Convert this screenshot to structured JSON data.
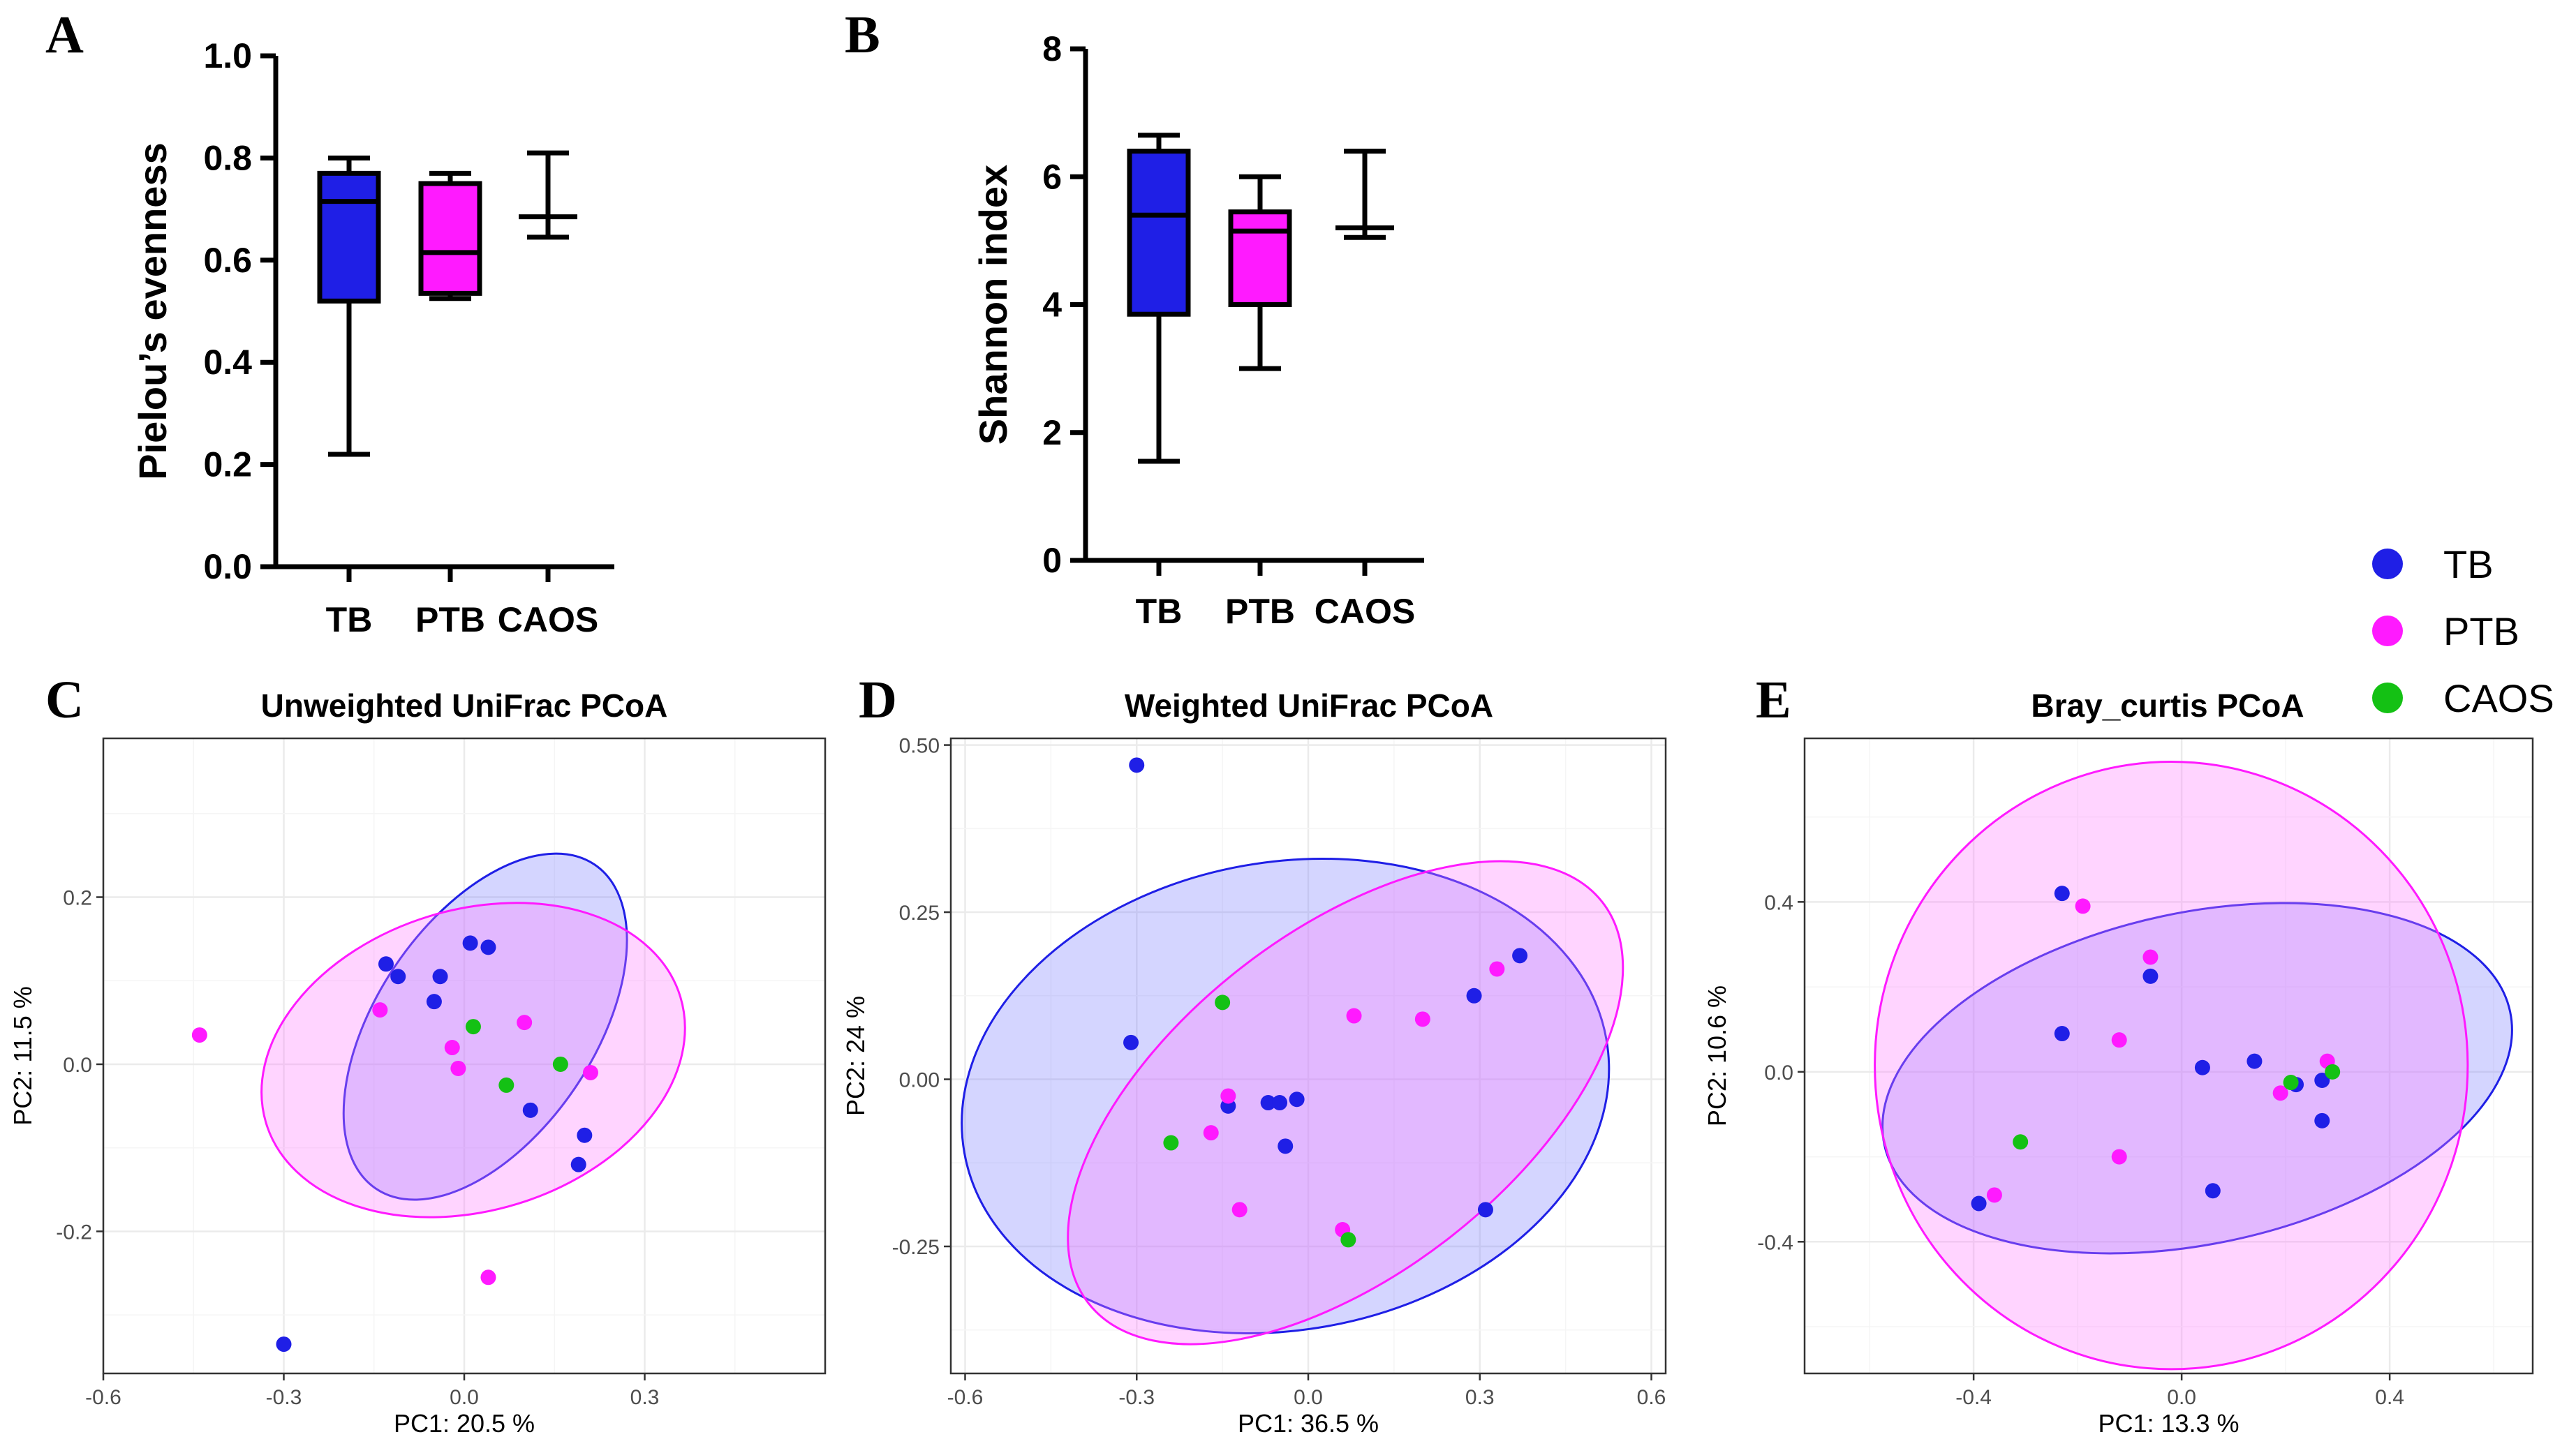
{
  "panels": {
    "A": "A",
    "B": "B",
    "C": "C",
    "D": "D",
    "E": "E"
  },
  "colors": {
    "TB": "#1f1fe6",
    "PTB": "#ff1aff",
    "CAOS": "#14c114",
    "TB_fill": "#7b80ff",
    "PTB_fill": "#ff7bff"
  },
  "legend": {
    "entries": [
      {
        "label": "TB",
        "color": "#1f1fe6"
      },
      {
        "label": "PTB",
        "color": "#ff1aff"
      },
      {
        "label": "CAOS",
        "color": "#14c114"
      }
    ]
  },
  "chart_data": [
    {
      "id": "A",
      "type": "box",
      "ylabel": "Pielou’s evenness",
      "ylim": [
        0,
        1.0
      ],
      "yticks": [
        "0.0",
        "0.2",
        "0.4",
        "0.6",
        "0.8",
        "1.0"
      ],
      "ytick_values": [
        0,
        0.2,
        0.4,
        0.6,
        0.8,
        1.0
      ],
      "categories": [
        "TB",
        "PTB",
        "CAOS"
      ],
      "boxes": [
        {
          "group": "TB",
          "min": 0.22,
          "q1": 0.52,
          "median": 0.715,
          "q3": 0.77,
          "max": 0.8,
          "fill": "#1f1fe6"
        },
        {
          "group": "PTB",
          "min": 0.525,
          "q1": 0.535,
          "median": 0.615,
          "q3": 0.75,
          "max": 0.77,
          "fill": "#ff1aff"
        },
        {
          "group": "CAOS",
          "min": 0.645,
          "q1": 0.685,
          "median": 0.685,
          "q3": 0.685,
          "max": 0.81,
          "fill": "none"
        }
      ]
    },
    {
      "id": "B",
      "type": "box",
      "ylabel": "Shannon index",
      "ylim": [
        0,
        8
      ],
      "yticks": [
        "0",
        "2",
        "4",
        "6",
        "8"
      ],
      "ytick_values": [
        0,
        2,
        4,
        6,
        8
      ],
      "categories": [
        "TB",
        "PTB",
        "CAOS"
      ],
      "boxes": [
        {
          "group": "TB",
          "min": 1.55,
          "q1": 3.85,
          "median": 5.4,
          "q3": 6.4,
          "max": 6.65,
          "fill": "#1f1fe6"
        },
        {
          "group": "PTB",
          "min": 3.0,
          "q1": 4.0,
          "median": 5.15,
          "q3": 5.45,
          "max": 6.0,
          "fill": "#ff1aff"
        },
        {
          "group": "CAOS",
          "min": 5.05,
          "q1": 5.2,
          "median": 5.2,
          "q3": 5.2,
          "max": 6.4,
          "fill": "none"
        }
      ]
    },
    {
      "id": "C",
      "type": "scatter",
      "title": "Unweighted UniFrac PCoA",
      "xlabel": "PC1: 20.5 %",
      "ylabel": "PC2: 11.5 %",
      "xlim": [
        -0.6,
        0.6
      ],
      "ylim": [
        -0.37,
        0.39
      ],
      "xticks": [
        -0.6,
        -0.3,
        0.0,
        0.3
      ],
      "xtick_labels": [
        "-0.6",
        "-0.3",
        "0.0",
        "0.3"
      ],
      "yticks": [
        -0.2,
        0.0,
        0.2
      ],
      "ytick_labels": [
        "-0.2",
        "0.0",
        "0.2"
      ],
      "ellipses": [
        {
          "group": "TB",
          "cx": 0.035,
          "cy": 0.045,
          "rx": 0.325,
          "ry": 0.13,
          "angle_deg": -56
        },
        {
          "group": "PTB",
          "cx": 0.015,
          "cy": 0.005,
          "rx": 0.36,
          "ry": 0.18,
          "angle_deg": -17
        }
      ],
      "points": [
        {
          "group": "TB",
          "x": -0.13,
          "y": 0.12
        },
        {
          "group": "TB",
          "x": -0.11,
          "y": 0.105
        },
        {
          "group": "TB",
          "x": -0.04,
          "y": 0.105
        },
        {
          "group": "TB",
          "x": -0.05,
          "y": 0.075
        },
        {
          "group": "TB",
          "x": 0.01,
          "y": 0.145
        },
        {
          "group": "TB",
          "x": 0.04,
          "y": 0.14
        },
        {
          "group": "TB",
          "x": 0.11,
          "y": -0.055
        },
        {
          "group": "TB",
          "x": 0.2,
          "y": -0.085
        },
        {
          "group": "TB",
          "x": 0.19,
          "y": -0.12
        },
        {
          "group": "TB",
          "x": -0.3,
          "y": -0.335
        },
        {
          "group": "PTB",
          "x": -0.44,
          "y": 0.035
        },
        {
          "group": "PTB",
          "x": -0.14,
          "y": 0.065
        },
        {
          "group": "PTB",
          "x": -0.02,
          "y": 0.02
        },
        {
          "group": "PTB",
          "x": -0.01,
          "y": -0.005
        },
        {
          "group": "PTB",
          "x": 0.1,
          "y": 0.05
        },
        {
          "group": "PTB",
          "x": 0.21,
          "y": -0.01
        },
        {
          "group": "PTB",
          "x": 0.04,
          "y": -0.255
        },
        {
          "group": "CAOS",
          "x": 0.015,
          "y": 0.045
        },
        {
          "group": "CAOS",
          "x": 0.07,
          "y": -0.025
        },
        {
          "group": "CAOS",
          "x": 0.16,
          "y": 0.0
        }
      ]
    },
    {
      "id": "D",
      "type": "scatter",
      "title": "Weighted UniFrac PCoA",
      "xlabel": "PC1: 36.5 %",
      "ylabel": "PC2: 24 %",
      "xlim": [
        -0.625,
        0.625
      ],
      "ylim": [
        -0.44,
        0.51
      ],
      "xticks": [
        -0.6,
        -0.3,
        0.0,
        0.3,
        0.6
      ],
      "xtick_labels": [
        "-0.6",
        "-0.3",
        "0.0",
        "0.3",
        "0.6"
      ],
      "yticks": [
        -0.25,
        0.0,
        0.25,
        0.5
      ],
      "ytick_labels": [
        "-0.25",
        "0.00",
        "0.25",
        "0.50"
      ],
      "ellipses": [
        {
          "group": "TB",
          "cx": -0.04,
          "cy": -0.025,
          "rx": 0.57,
          "ry": 0.35,
          "angle_deg": -10
        },
        {
          "group": "PTB",
          "cx": 0.065,
          "cy": -0.035,
          "rx": 0.57,
          "ry": 0.255,
          "angle_deg": -38
        }
      ],
      "points": [
        {
          "group": "TB",
          "x": -0.3,
          "y": 0.47
        },
        {
          "group": "TB",
          "x": -0.31,
          "y": 0.055
        },
        {
          "group": "TB",
          "x": -0.14,
          "y": -0.04
        },
        {
          "group": "TB",
          "x": -0.07,
          "y": -0.035
        },
        {
          "group": "TB",
          "x": -0.05,
          "y": -0.035
        },
        {
          "group": "TB",
          "x": -0.02,
          "y": -0.03
        },
        {
          "group": "TB",
          "x": -0.04,
          "y": -0.1
        },
        {
          "group": "TB",
          "x": 0.29,
          "y": 0.125
        },
        {
          "group": "TB",
          "x": 0.37,
          "y": 0.185
        },
        {
          "group": "TB",
          "x": 0.31,
          "y": -0.195
        },
        {
          "group": "PTB",
          "x": -0.14,
          "y": -0.025
        },
        {
          "group": "PTB",
          "x": -0.17,
          "y": -0.08
        },
        {
          "group": "PTB",
          "x": -0.12,
          "y": -0.195
        },
        {
          "group": "PTB",
          "x": 0.08,
          "y": 0.095
        },
        {
          "group": "PTB",
          "x": 0.2,
          "y": 0.09
        },
        {
          "group": "PTB",
          "x": 0.33,
          "y": 0.165
        },
        {
          "group": "PTB",
          "x": 0.06,
          "y": -0.225
        },
        {
          "group": "CAOS",
          "x": -0.15,
          "y": 0.115
        },
        {
          "group": "CAOS",
          "x": -0.24,
          "y": -0.095
        },
        {
          "group": "CAOS",
          "x": 0.07,
          "y": -0.24
        }
      ]
    },
    {
      "id": "E",
      "type": "scatter",
      "title": "Bray_curtis PCoA",
      "xlabel": "PC1: 13.3 %",
      "ylabel": "PC2: 10.6 %",
      "xlim": [
        -0.725,
        0.675
      ],
      "ylim": [
        -0.71,
        0.785
      ],
      "xticks": [
        -0.4,
        0.0,
        0.4
      ],
      "xtick_labels": [
        "-0.4",
        "0.0",
        "0.4"
      ],
      "yticks": [
        -0.4,
        0.0,
        0.4
      ],
      "ytick_labels": [
        "-0.4",
        "0.0",
        "0.4"
      ],
      "ellipses": [
        {
          "group": "TB",
          "cx": 0.03,
          "cy": -0.015,
          "rx": 0.615,
          "ry": 0.39,
          "angle_deg": -12
        },
        {
          "group": "PTB",
          "cx": -0.02,
          "cy": 0.015,
          "rx": 0.57,
          "ry": 0.715,
          "angle_deg": 0
        }
      ],
      "points": [
        {
          "group": "TB",
          "x": -0.23,
          "y": 0.42
        },
        {
          "group": "TB",
          "x": -0.06,
          "y": 0.225
        },
        {
          "group": "TB",
          "x": -0.23,
          "y": 0.09
        },
        {
          "group": "TB",
          "x": 0.04,
          "y": 0.01
        },
        {
          "group": "TB",
          "x": 0.14,
          "y": 0.025
        },
        {
          "group": "TB",
          "x": 0.22,
          "y": -0.03
        },
        {
          "group": "TB",
          "x": 0.27,
          "y": -0.02
        },
        {
          "group": "TB",
          "x": 0.27,
          "y": -0.115
        },
        {
          "group": "TB",
          "x": 0.06,
          "y": -0.28
        },
        {
          "group": "TB",
          "x": -0.39,
          "y": -0.31
        },
        {
          "group": "PTB",
          "x": -0.19,
          "y": 0.39
        },
        {
          "group": "PTB",
          "x": -0.06,
          "y": 0.27
        },
        {
          "group": "PTB",
          "x": -0.12,
          "y": 0.075
        },
        {
          "group": "PTB",
          "x": 0.19,
          "y": -0.05
        },
        {
          "group": "PTB",
          "x": 0.28,
          "y": 0.025
        },
        {
          "group": "PTB",
          "x": -0.12,
          "y": -0.2
        },
        {
          "group": "PTB",
          "x": -0.36,
          "y": -0.29
        },
        {
          "group": "CAOS",
          "x": 0.21,
          "y": -0.025
        },
        {
          "group": "CAOS",
          "x": 0.29,
          "y": 0.0
        },
        {
          "group": "CAOS",
          "x": -0.31,
          "y": -0.165
        }
      ]
    }
  ]
}
